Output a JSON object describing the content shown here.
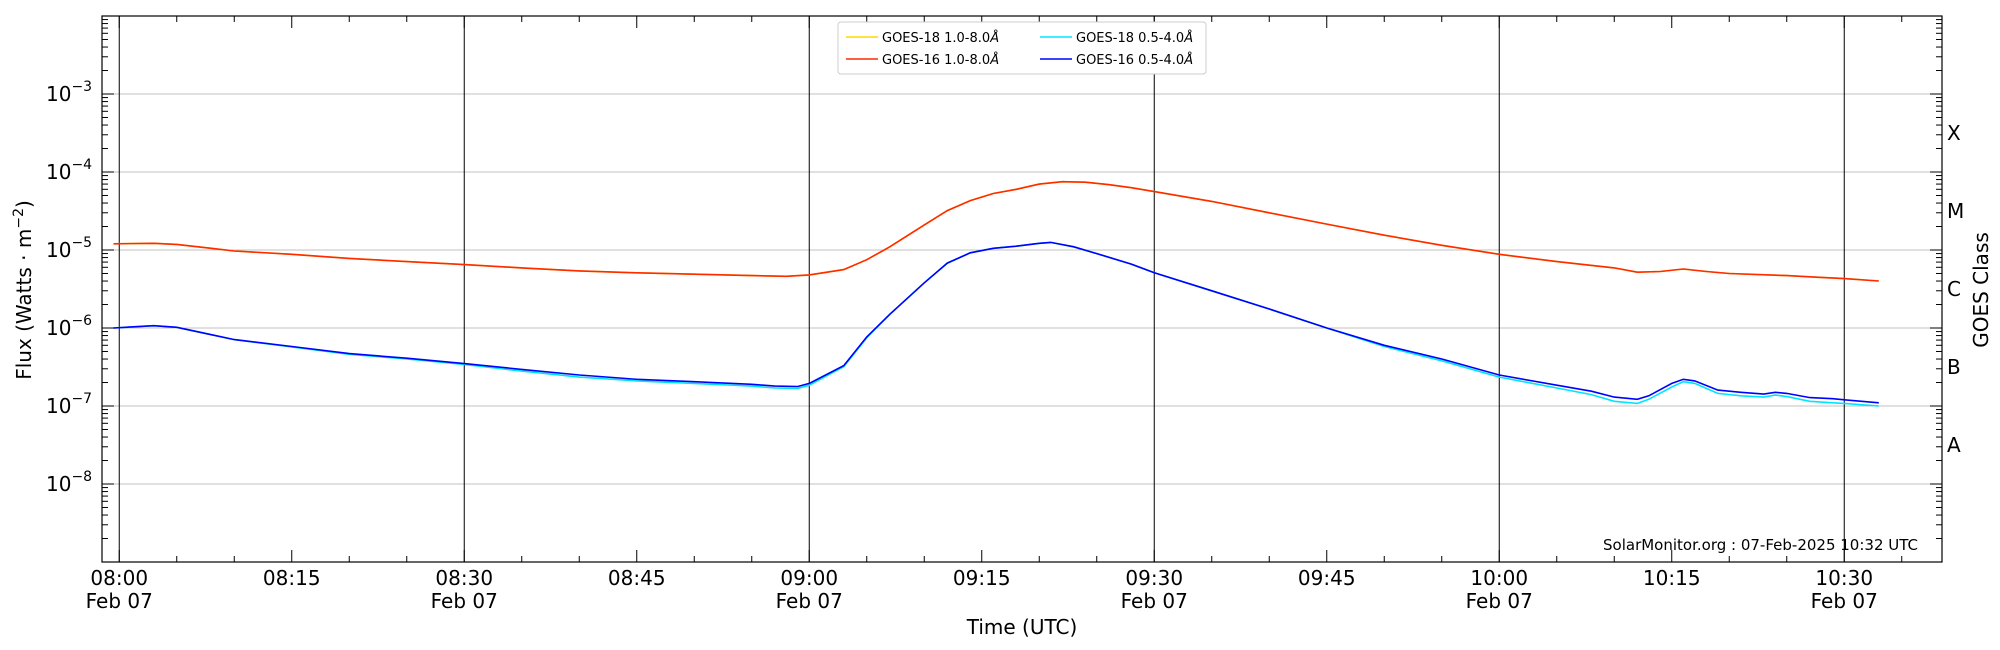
{
  "chart_data": {
    "type": "line",
    "xlabel": "Time (UTC)",
    "ylabel": "Flux (Watts · m",
    "ylabel_sup": "−2",
    "ylabel_close": ")",
    "right_label": "GOES Class",
    "credit": "SolarMonitor.org : 07-Feb-2025 10:32 UTC",
    "y_scale": "log",
    "ylim_exp": [
      -9,
      -2
    ],
    "xlim_minutes": [
      -1.5,
      158.5
    ],
    "grid": "horizontal at each decade",
    "legend_position": "top-center",
    "colors": {
      "goes18_long": "#ffd700",
      "goes16_long": "#ff2a00",
      "goes18_short": "#00e5ff",
      "goes16_short": "#0000ff"
    },
    "y_ticks": [
      {
        "exp": -3,
        "base": "10",
        "sup": "−3"
      },
      {
        "exp": -4,
        "base": "10",
        "sup": "−4"
      },
      {
        "exp": -5,
        "base": "10",
        "sup": "−5"
      },
      {
        "exp": -6,
        "base": "10",
        "sup": "−6"
      },
      {
        "exp": -7,
        "base": "10",
        "sup": "−7"
      },
      {
        "exp": -8,
        "base": "10",
        "sup": "−8"
      }
    ],
    "x_ticks": [
      {
        "minutes": 0,
        "time": "08:00",
        "date": "Feb 07"
      },
      {
        "minutes": 15,
        "time": "08:15",
        "date": ""
      },
      {
        "minutes": 30,
        "time": "08:30",
        "date": "Feb 07"
      },
      {
        "minutes": 45,
        "time": "08:45",
        "date": ""
      },
      {
        "minutes": 60,
        "time": "09:00",
        "date": "Feb 07"
      },
      {
        "minutes": 75,
        "time": "09:15",
        "date": ""
      },
      {
        "minutes": 90,
        "time": "09:30",
        "date": "Feb 07"
      },
      {
        "minutes": 105,
        "time": "09:45",
        "date": ""
      },
      {
        "minutes": 120,
        "time": "10:00",
        "date": "Feb 07"
      },
      {
        "minutes": 135,
        "time": "10:15",
        "date": ""
      },
      {
        "minutes": 150,
        "time": "10:30",
        "date": "Feb 07"
      }
    ],
    "vlines_minutes": [
      0,
      30,
      60,
      90,
      120,
      150
    ],
    "goes_classes": [
      {
        "label": "X",
        "exp": -3.5
      },
      {
        "label": "M",
        "exp": -4.5
      },
      {
        "label": "C",
        "exp": -5.5
      },
      {
        "label": "B",
        "exp": -6.5
      },
      {
        "label": "A",
        "exp": -7.5
      }
    ],
    "series": [
      {
        "name": "GOES-18 1.0-8.0",
        "name_suffix": "Å",
        "color_key": "goes18_long",
        "points": [
          [
            -0.5,
            1.2e-05
          ],
          [
            3,
            1.22e-05
          ],
          [
            5,
            1.18e-05
          ],
          [
            8,
            1.05e-05
          ],
          [
            10,
            9.7e-06
          ],
          [
            15,
            8.8e-06
          ],
          [
            20,
            7.8e-06
          ],
          [
            25,
            7.1e-06
          ],
          [
            30,
            6.5e-06
          ],
          [
            35,
            5.9e-06
          ],
          [
            40,
            5.4e-06
          ],
          [
            45,
            5.1e-06
          ],
          [
            50,
            4.9e-06
          ],
          [
            55,
            4.7e-06
          ],
          [
            58,
            4.6e-06
          ],
          [
            60,
            4.8e-06
          ],
          [
            63,
            5.6e-06
          ],
          [
            65,
            7.5e-06
          ],
          [
            67,
            1.1e-05
          ],
          [
            70,
            2.1e-05
          ],
          [
            72,
            3.2e-05
          ],
          [
            74,
            4.3e-05
          ],
          [
            76,
            5.3e-05
          ],
          [
            78,
            6e-05
          ],
          [
            80,
            7e-05
          ],
          [
            82,
            7.5e-05
          ],
          [
            84,
            7.4e-05
          ],
          [
            86,
            6.9e-05
          ],
          [
            88,
            6.3e-05
          ],
          [
            90,
            5.6e-05
          ],
          [
            95,
            4.2e-05
          ],
          [
            100,
            3e-05
          ],
          [
            105,
            2.15e-05
          ],
          [
            110,
            1.55e-05
          ],
          [
            115,
            1.15e-05
          ],
          [
            120,
            8.8e-06
          ],
          [
            125,
            7.1e-06
          ],
          [
            130,
            5.9e-06
          ],
          [
            132,
            5.2e-06
          ],
          [
            134,
            5.3e-06
          ],
          [
            136,
            5.7e-06
          ],
          [
            138,
            5.3e-06
          ],
          [
            140,
            5e-06
          ],
          [
            145,
            4.7e-06
          ],
          [
            148,
            4.45e-06
          ],
          [
            150,
            4.3e-06
          ],
          [
            153,
            4e-06
          ]
        ]
      },
      {
        "name": "GOES-16 1.0-8.0",
        "name_suffix": "Å",
        "color_key": "goes16_long",
        "points": [
          [
            -0.5,
            1.2e-05
          ],
          [
            3,
            1.22e-05
          ],
          [
            5,
            1.18e-05
          ],
          [
            8,
            1.05e-05
          ],
          [
            10,
            9.7e-06
          ],
          [
            15,
            8.8e-06
          ],
          [
            20,
            7.8e-06
          ],
          [
            25,
            7.1e-06
          ],
          [
            30,
            6.5e-06
          ],
          [
            35,
            5.9e-06
          ],
          [
            40,
            5.4e-06
          ],
          [
            45,
            5.1e-06
          ],
          [
            50,
            4.9e-06
          ],
          [
            55,
            4.7e-06
          ],
          [
            58,
            4.6e-06
          ],
          [
            60,
            4.8e-06
          ],
          [
            63,
            5.6e-06
          ],
          [
            65,
            7.5e-06
          ],
          [
            67,
            1.1e-05
          ],
          [
            70,
            2.1e-05
          ],
          [
            72,
            3.2e-05
          ],
          [
            74,
            4.3e-05
          ],
          [
            76,
            5.3e-05
          ],
          [
            78,
            6e-05
          ],
          [
            80,
            7e-05
          ],
          [
            82,
            7.5e-05
          ],
          [
            84,
            7.4e-05
          ],
          [
            86,
            6.9e-05
          ],
          [
            88,
            6.3e-05
          ],
          [
            90,
            5.6e-05
          ],
          [
            95,
            4.2e-05
          ],
          [
            100,
            3e-05
          ],
          [
            105,
            2.15e-05
          ],
          [
            110,
            1.55e-05
          ],
          [
            115,
            1.15e-05
          ],
          [
            120,
            8.8e-06
          ],
          [
            125,
            7.1e-06
          ],
          [
            130,
            5.9e-06
          ],
          [
            132,
            5.2e-06
          ],
          [
            134,
            5.3e-06
          ],
          [
            136,
            5.7e-06
          ],
          [
            138,
            5.3e-06
          ],
          [
            140,
            5e-06
          ],
          [
            145,
            4.7e-06
          ],
          [
            148,
            4.45e-06
          ],
          [
            150,
            4.3e-06
          ],
          [
            153,
            4e-06
          ]
        ]
      },
      {
        "name": "GOES-18 0.5-4.0",
        "name_suffix": "Å",
        "color_key": "goes18_short",
        "points": [
          [
            -0.5,
            1e-06
          ],
          [
            3,
            1.07e-06
          ],
          [
            5,
            1.02e-06
          ],
          [
            8,
            8.2e-07
          ],
          [
            10,
            7.1e-07
          ],
          [
            15,
            5.7e-07
          ],
          [
            20,
            4.6e-07
          ],
          [
            25,
            4e-07
          ],
          [
            30,
            3.4e-07
          ],
          [
            35,
            2.8e-07
          ],
          [
            40,
            2.35e-07
          ],
          [
            45,
            2.1e-07
          ],
          [
            50,
            1.95e-07
          ],
          [
            55,
            1.8e-07
          ],
          [
            57,
            1.7e-07
          ],
          [
            59,
            1.68e-07
          ],
          [
            60,
            1.85e-07
          ],
          [
            63,
            3.2e-07
          ],
          [
            65,
            7.5e-07
          ],
          [
            67,
            1.5e-06
          ],
          [
            70,
            3.8e-06
          ],
          [
            72,
            6.8e-06
          ],
          [
            74,
            9.2e-06
          ],
          [
            76,
            1.05e-05
          ],
          [
            78,
            1.12e-05
          ],
          [
            80,
            1.22e-05
          ],
          [
            81,
            1.25e-05
          ],
          [
            83,
            1.1e-05
          ],
          [
            85,
            9e-06
          ],
          [
            88,
            6.6e-06
          ],
          [
            90,
            5.1e-06
          ],
          [
            95,
            3e-06
          ],
          [
            100,
            1.75e-06
          ],
          [
            105,
            1e-06
          ],
          [
            110,
            5.8e-07
          ],
          [
            115,
            3.8e-07
          ],
          [
            120,
            2.35e-07
          ],
          [
            125,
            1.7e-07
          ],
          [
            128,
            1.4e-07
          ],
          [
            130,
            1.15e-07
          ],
          [
            132,
            1.08e-07
          ],
          [
            133,
            1.22e-07
          ],
          [
            135,
            1.75e-07
          ],
          [
            136,
            2.05e-07
          ],
          [
            137,
            1.95e-07
          ],
          [
            139,
            1.45e-07
          ],
          [
            141,
            1.35e-07
          ],
          [
            143,
            1.3e-07
          ],
          [
            144,
            1.38e-07
          ],
          [
            145,
            1.32e-07
          ],
          [
            147,
            1.15e-07
          ],
          [
            149,
            1.1e-07
          ],
          [
            150,
            1.08e-07
          ],
          [
            153,
            1e-07
          ]
        ]
      },
      {
        "name": "GOES-16 0.5-4.0",
        "name_suffix": "Å",
        "color_key": "goes16_short",
        "points": [
          [
            -0.5,
            1e-06
          ],
          [
            3,
            1.07e-06
          ],
          [
            5,
            1.02e-06
          ],
          [
            8,
            8.2e-07
          ],
          [
            10,
            7.1e-07
          ],
          [
            15,
            5.8e-07
          ],
          [
            20,
            4.7e-07
          ],
          [
            25,
            4.1e-07
          ],
          [
            30,
            3.5e-07
          ],
          [
            35,
            2.95e-07
          ],
          [
            40,
            2.5e-07
          ],
          [
            45,
            2.2e-07
          ],
          [
            50,
            2.05e-07
          ],
          [
            55,
            1.9e-07
          ],
          [
            57,
            1.8e-07
          ],
          [
            59,
            1.78e-07
          ],
          [
            60,
            1.95e-07
          ],
          [
            63,
            3.3e-07
          ],
          [
            65,
            7.7e-07
          ],
          [
            67,
            1.5e-06
          ],
          [
            70,
            3.8e-06
          ],
          [
            72,
            6.8e-06
          ],
          [
            74,
            9.2e-06
          ],
          [
            76,
            1.05e-05
          ],
          [
            78,
            1.12e-05
          ],
          [
            80,
            1.22e-05
          ],
          [
            81,
            1.25e-05
          ],
          [
            83,
            1.1e-05
          ],
          [
            85,
            9e-06
          ],
          [
            88,
            6.6e-06
          ],
          [
            90,
            5.1e-06
          ],
          [
            95,
            3e-06
          ],
          [
            100,
            1.75e-06
          ],
          [
            105,
            1e-06
          ],
          [
            110,
            6e-07
          ],
          [
            115,
            4e-07
          ],
          [
            120,
            2.5e-07
          ],
          [
            125,
            1.85e-07
          ],
          [
            128,
            1.55e-07
          ],
          [
            130,
            1.3e-07
          ],
          [
            132,
            1.22e-07
          ],
          [
            133,
            1.35e-07
          ],
          [
            135,
            1.95e-07
          ],
          [
            136,
            2.2e-07
          ],
          [
            137,
            2.1e-07
          ],
          [
            139,
            1.6e-07
          ],
          [
            141,
            1.5e-07
          ],
          [
            143,
            1.42e-07
          ],
          [
            144,
            1.5e-07
          ],
          [
            145,
            1.45e-07
          ],
          [
            147,
            1.28e-07
          ],
          [
            149,
            1.24e-07
          ],
          [
            150,
            1.2e-07
          ],
          [
            153,
            1.1e-07
          ]
        ]
      }
    ]
  }
}
